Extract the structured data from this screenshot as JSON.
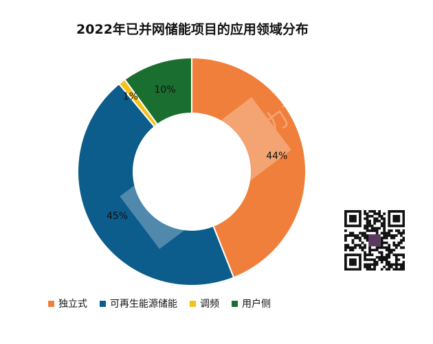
{
  "chart_data": {
    "type": "pie",
    "title": "2022年已并网储能项目的应用领域分布",
    "categories": [
      "独立式",
      "可再生能源储能",
      "调频",
      "用户侧"
    ],
    "values": [
      44,
      45,
      1,
      10
    ],
    "value_labels": [
      "44%",
      "45%",
      "1%",
      "10%"
    ],
    "colors": [
      "#F07F3C",
      "#0C5C8C",
      "#F5C21B",
      "#1A6E30"
    ],
    "legend_position": "bottom",
    "donut": true
  },
  "watermark": {
    "text": "储能与电力市场",
    "logo_colors": [
      "#ffffff"
    ]
  },
  "qr_code": {
    "icon": "qr-code-icon",
    "center_color": "#5A3A5E"
  }
}
